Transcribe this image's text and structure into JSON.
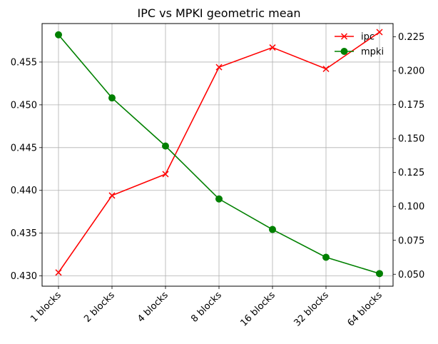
{
  "chart_data": {
    "type": "line",
    "title": "IPC vs MPKI geometric mean",
    "xlabel": "",
    "ylabel_left": "",
    "ylabel_right": "",
    "categories": [
      "1 blocks",
      "2 blocks",
      "4 blocks",
      "8 blocks",
      "16 blocks",
      "32 blocks",
      "64 blocks"
    ],
    "grid": true,
    "legend_position": "top-right",
    "left_axis": {
      "ylim": [
        0.4288,
        0.4595
      ],
      "ticks": [
        0.43,
        0.435,
        0.44,
        0.445,
        0.45,
        0.455
      ],
      "tick_labels": [
        "0.430",
        "0.435",
        "0.440",
        "0.445",
        "0.450",
        "0.455"
      ]
    },
    "right_axis": {
      "ylim": [
        0.0412,
        0.2348
      ],
      "ticks": [
        0.05,
        0.075,
        0.1,
        0.125,
        0.15,
        0.175,
        0.2,
        0.225
      ],
      "tick_labels": [
        "0.050",
        "0.075",
        "0.100",
        "0.125",
        "0.150",
        "0.175",
        "0.200",
        "0.225"
      ]
    },
    "series": [
      {
        "name": "ipc",
        "axis": "left",
        "color": "#ff0000",
        "marker": "x",
        "values": [
          0.4304,
          0.4394,
          0.4419,
          0.4544,
          0.4567,
          0.4542,
          0.4585
        ]
      },
      {
        "name": "mpki",
        "axis": "right",
        "color": "#008000",
        "marker": "o",
        "values": [
          0.2265,
          0.18,
          0.1445,
          0.1055,
          0.083,
          0.0625,
          0.0505
        ]
      }
    ]
  }
}
